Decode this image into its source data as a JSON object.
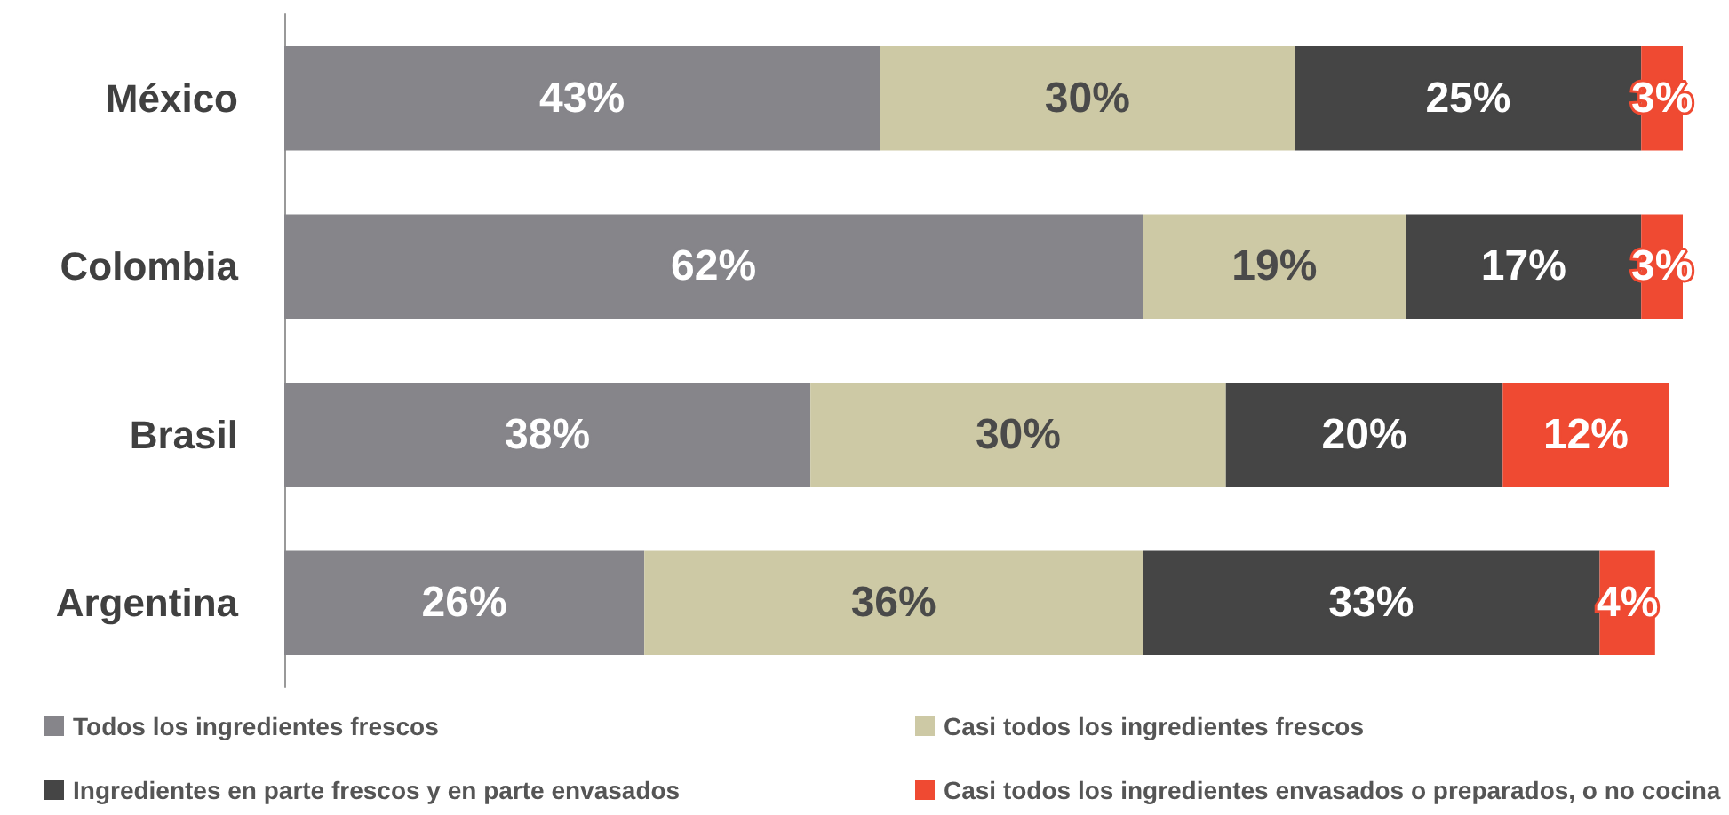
{
  "chart_data": {
    "type": "bar",
    "orientation": "horizontal",
    "stacked": true,
    "legend": "bottom",
    "categories": [
      "México",
      "Colombia",
      "Brasil",
      "Argentina"
    ],
    "series": [
      {
        "name": "Todos los ingredientes frescos",
        "color": "#86858a",
        "values": [
          43,
          62,
          38,
          26
        ],
        "value_labels": [
          "43%",
          "62%",
          "38%",
          "26%"
        ]
      },
      {
        "name": "Casi todos los ingredientes frescos",
        "color": "#cdc9a5",
        "values": [
          30,
          19,
          30,
          36
        ],
        "value_labels": [
          "30%",
          "19%",
          "30%",
          "36%"
        ]
      },
      {
        "name": "Ingredientes en parte frescos y en parte envasados",
        "color": "#454545",
        "values": [
          25,
          17,
          20,
          33
        ],
        "value_labels": [
          "25%",
          "17%",
          "20%",
          "33%"
        ]
      },
      {
        "name": "Casi todos los ingredientes envasados o preparados, o no cocina",
        "color": "#ef4a32",
        "values": [
          3,
          3,
          12,
          4
        ],
        "value_labels": [
          "3%",
          "3%",
          "12%",
          "4%"
        ]
      }
    ]
  }
}
